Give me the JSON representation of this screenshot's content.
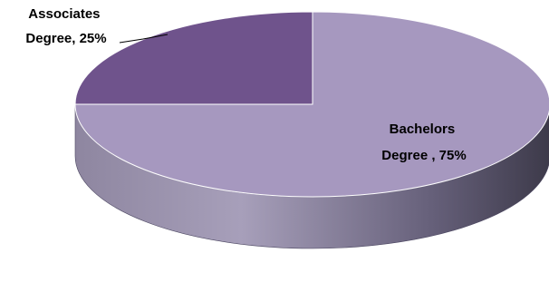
{
  "chart_data": {
    "type": "pie",
    "style": "3d",
    "categories": [
      "Associates Degree",
      "Bachelors Degree"
    ],
    "values": [
      25,
      75
    ],
    "labels": [
      [
        "Associates",
        "Degree, 25%"
      ],
      [
        "Bachelors",
        "Degree , 75%"
      ]
    ],
    "colors": [
      "#6f538c",
      "#a698bf"
    ],
    "side_colors": [
      "#3a2f4a",
      "#8f83a6"
    ],
    "title": "",
    "legend": "none"
  }
}
